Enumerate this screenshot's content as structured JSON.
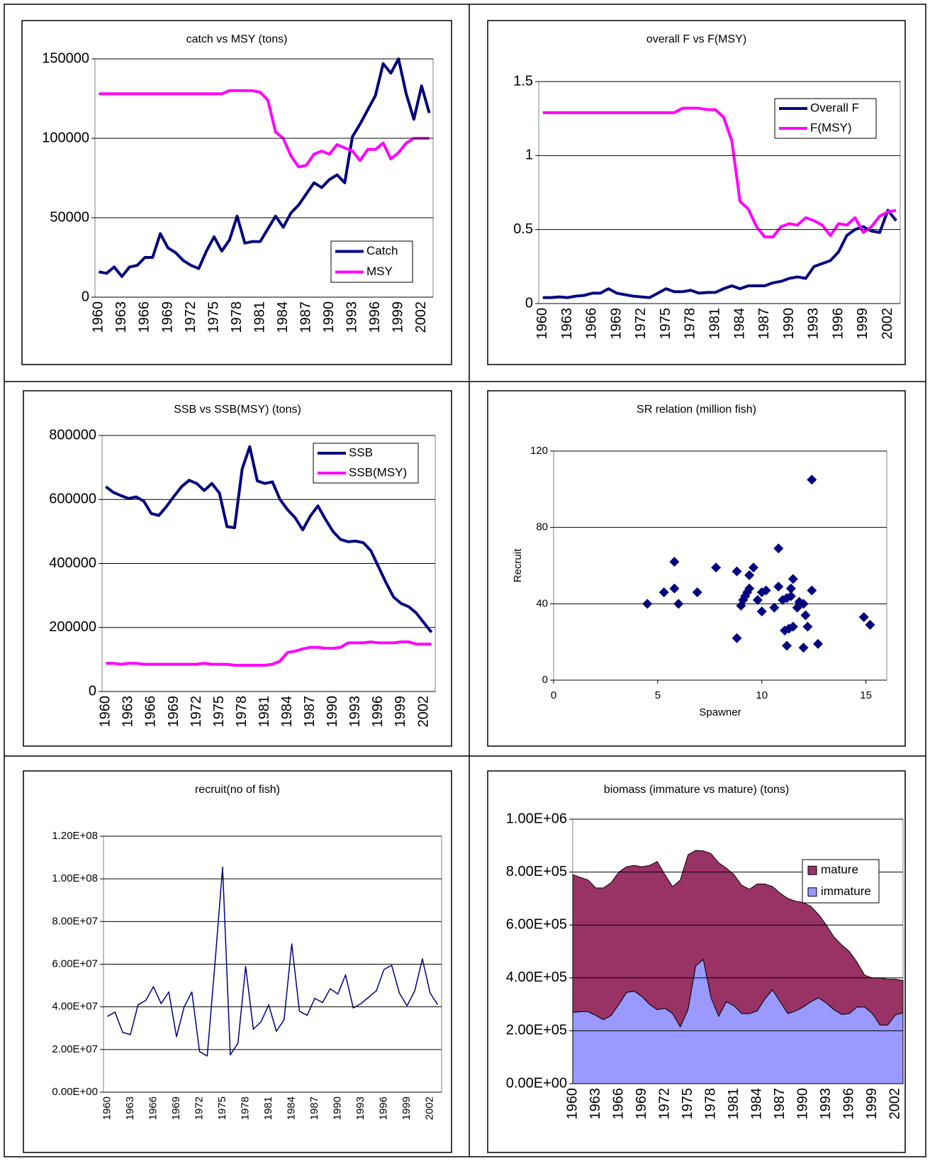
{
  "chart_data": [
    {
      "type": "line",
      "title": "catch vs MSY (tons)",
      "categories": [
        "1960",
        null,
        null,
        "1963",
        null,
        null,
        "1966",
        null,
        null,
        "1969",
        null,
        null,
        "1972",
        null,
        null,
        "1975",
        null,
        null,
        "1978",
        null,
        null,
        "1981",
        null,
        null,
        "1984",
        null,
        null,
        "1987",
        null,
        null,
        "1990",
        null,
        null,
        "1993",
        null,
        null,
        "1996",
        null,
        null,
        "1999",
        null,
        null,
        "2002",
        null
      ],
      "series": [
        {
          "name": "Catch",
          "color": "#000080",
          "values": [
            16000,
            15000,
            19000,
            13000,
            19000,
            20000,
            25000,
            25000,
            40000,
            31000,
            28000,
            23000,
            20000,
            18000,
            29000,
            38000,
            29000,
            36000,
            51000,
            34000,
            35000,
            35000,
            43000,
            51000,
            44000,
            53000,
            58000,
            65000,
            72000,
            69000,
            74000,
            77000,
            72000,
            101000,
            109000,
            118000,
            127000,
            147000,
            141000,
            150000,
            128000,
            112000,
            133000,
            116000
          ]
        },
        {
          "name": "MSY",
          "color": "#ff00ff",
          "values": [
            128000,
            128000,
            128000,
            128000,
            128000,
            128000,
            128000,
            128000,
            128000,
            128000,
            128000,
            128000,
            128000,
            128000,
            128000,
            128000,
            128000,
            130000,
            130000,
            130000,
            130000,
            129000,
            124000,
            104000,
            100000,
            89000,
            82000,
            83000,
            90000,
            92000,
            90000,
            96000,
            94000,
            92000,
            86000,
            93000,
            93000,
            97000,
            87000,
            91000,
            97000,
            100000,
            100000,
            100000
          ]
        }
      ],
      "ylim": [
        0,
        150000
      ],
      "yticks": [
        0,
        50000,
        100000,
        150000
      ],
      "grid": true,
      "legend": "lower right"
    },
    {
      "type": "line",
      "title": "overall F vs F(MSY)",
      "categories": [
        "1960",
        null,
        null,
        "1963",
        null,
        null,
        "1966",
        null,
        null,
        "1969",
        null,
        null,
        "1972",
        null,
        null,
        "1975",
        null,
        null,
        "1978",
        null,
        null,
        "1981",
        null,
        null,
        "1984",
        null,
        null,
        "1987",
        null,
        null,
        "1990",
        null,
        null,
        "1993",
        null,
        null,
        "1996",
        null,
        null,
        "1999",
        null,
        null,
        "2002",
        null
      ],
      "series": [
        {
          "name": "Overall F",
          "color": "#000080",
          "values": [
            0.04,
            0.04,
            0.045,
            0.04,
            0.05,
            0.055,
            0.07,
            0.07,
            0.1,
            0.07,
            0.06,
            0.05,
            0.045,
            0.04,
            0.07,
            0.1,
            0.08,
            0.08,
            0.09,
            0.07,
            0.075,
            0.075,
            0.1,
            0.12,
            0.1,
            0.12,
            0.12,
            0.12,
            0.14,
            0.15,
            0.17,
            0.18,
            0.17,
            0.25,
            0.27,
            0.29,
            0.35,
            0.46,
            0.5,
            0.52,
            0.49,
            0.48,
            0.63,
            0.56
          ]
        },
        {
          "name": "F(MSY)",
          "color": "#ff00ff",
          "values": [
            1.29,
            1.29,
            1.29,
            1.29,
            1.29,
            1.29,
            1.29,
            1.29,
            1.29,
            1.29,
            1.29,
            1.29,
            1.29,
            1.29,
            1.29,
            1.29,
            1.29,
            1.32,
            1.32,
            1.32,
            1.31,
            1.31,
            1.26,
            1.1,
            0.69,
            0.64,
            0.52,
            0.45,
            0.45,
            0.52,
            0.54,
            0.53,
            0.58,
            0.56,
            0.53,
            0.46,
            0.54,
            0.53,
            0.58,
            0.48,
            0.52,
            0.59,
            0.62,
            0.63
          ]
        }
      ],
      "ylim": [
        0,
        1.5
      ],
      "yticks": [
        0,
        0.5,
        1,
        1.5
      ],
      "grid": true,
      "legend": "upper right"
    },
    {
      "type": "line",
      "title": "SSB vs SSB(MSY) (tons)",
      "categories": [
        "1960",
        null,
        null,
        "1963",
        null,
        null,
        "1966",
        null,
        null,
        "1969",
        null,
        null,
        "1972",
        null,
        null,
        "1975",
        null,
        null,
        "1978",
        null,
        null,
        "1981",
        null,
        null,
        "1984",
        null,
        null,
        "1987",
        null,
        null,
        "1990",
        null,
        null,
        "1993",
        null,
        null,
        "1996",
        null,
        null,
        "1999",
        null,
        null,
        "2002",
        null
      ],
      "series": [
        {
          "name": "SSB",
          "color": "#000080",
          "values": [
            640000,
            622000,
            612000,
            603000,
            608000,
            595000,
            556000,
            550000,
            578000,
            610000,
            640000,
            660000,
            650000,
            628000,
            650000,
            620000,
            515000,
            512000,
            695000,
            765000,
            658000,
            650000,
            655000,
            600000,
            568000,
            543000,
            505000,
            548000,
            580000,
            538000,
            500000,
            475000,
            468000,
            470000,
            465000,
            440000,
            390000,
            340000,
            295000,
            275000,
            265000,
            245000,
            215000,
            185000
          ]
        },
        {
          "name": "SSB(MSY)",
          "color": "#ff00ff",
          "values": [
            88000,
            88000,
            85000,
            88000,
            88000,
            85000,
            85000,
            85000,
            85000,
            85000,
            85000,
            85000,
            85000,
            88000,
            85000,
            85000,
            85000,
            82000,
            82000,
            82000,
            82000,
            82000,
            85000,
            95000,
            122000,
            126000,
            133000,
            138000,
            138000,
            135000,
            135000,
            138000,
            152000,
            152000,
            152000,
            155000,
            152000,
            152000,
            152000,
            155000,
            155000,
            148000,
            148000,
            148000
          ]
        }
      ],
      "ylim": [
        0,
        800000
      ],
      "yticks": [
        0,
        200000,
        400000,
        600000,
        800000
      ],
      "grid": true,
      "legend": "upper right"
    },
    {
      "type": "scatter",
      "title": "SR relation (million fish)",
      "xlabel": "Spawner",
      "ylabel": "Recruit",
      "x": [
        4.5,
        5.3,
        5.8,
        5.8,
        6.0,
        6.9,
        7.8,
        8.8,
        8.8,
        9.0,
        9.1,
        9.2,
        9.3,
        9.4,
        9.4,
        9.6,
        9.8,
        10.0,
        10.0,
        10.2,
        10.6,
        10.8,
        10.8,
        11.0,
        11.1,
        11.2,
        11.2,
        11.3,
        11.4,
        11.4,
        11.5,
        11.5,
        11.7,
        11.8,
        12.0,
        12.0,
        12.1,
        12.2,
        12.4,
        12.4,
        12.7,
        14.9,
        15.2
      ],
      "values": [
        40,
        46,
        62,
        48,
        40,
        46,
        59,
        57,
        22,
        39,
        42,
        44,
        46,
        55,
        48,
        59,
        42,
        36,
        46,
        47,
        38,
        69,
        49,
        42,
        26,
        18,
        43,
        27,
        48,
        44,
        28,
        53,
        38,
        41,
        17,
        40,
        34,
        28,
        105,
        47,
        19,
        33,
        29
      ],
      "color": "#000080",
      "xlim": [
        0,
        16
      ],
      "xticks": [
        0,
        5,
        10,
        15
      ],
      "ylim": [
        0,
        120
      ],
      "yticks": [
        0,
        40,
        80,
        120
      ],
      "grid": true
    },
    {
      "type": "line",
      "title": "recruit(no of fish)",
      "categories": [
        "1960",
        null,
        null,
        "1963",
        null,
        null,
        "1966",
        null,
        null,
        "1969",
        null,
        null,
        "1972",
        null,
        null,
        "1975",
        null,
        null,
        "1978",
        null,
        null,
        "1981",
        null,
        null,
        "1984",
        null,
        null,
        "1987",
        null,
        null,
        "1990",
        null,
        null,
        "1993",
        null,
        null,
        "1996",
        null,
        null,
        "1999",
        null,
        null,
        "2002",
        null
      ],
      "values": [
        35500000,
        37500000,
        28000000,
        27000000,
        41000000,
        43000000,
        49500000,
        41500000,
        47000000,
        26000000,
        40000000,
        47000000,
        19000000,
        17000000,
        60000000,
        105500000,
        17500000,
        23000000,
        59000000,
        29500000,
        33000000,
        41000000,
        28500000,
        34000000,
        69500000,
        38000000,
        36000000,
        44000000,
        42000000,
        48500000,
        46000000,
        55000000,
        39500000,
        41500000,
        44500000,
        47500000,
        57500000,
        59500000,
        46500000,
        40500000,
        47500000,
        62500000,
        46500000,
        41000000
      ],
      "color": "#000080",
      "ylim": [
        0,
        120000000
      ],
      "yticks": [
        {
          "value": 0,
          "label": "0.00E+00"
        },
        {
          "value": 20000000,
          "label": "2.00E+07"
        },
        {
          "value": 40000000,
          "label": "4.00E+07"
        },
        {
          "value": 60000000,
          "label": "6.00E+07"
        },
        {
          "value": 80000000,
          "label": "8.00E+07"
        },
        {
          "value": 100000000,
          "label": "1.00E+08"
        },
        {
          "value": 120000000,
          "label": "1.20E+08"
        }
      ],
      "grid": true
    },
    {
      "type": "area",
      "title": "biomass (immature vs mature) (tons)",
      "stacked": true,
      "categories": [
        "1960",
        null,
        null,
        "1963",
        null,
        null,
        "1966",
        null,
        null,
        "1969",
        null,
        null,
        "1972",
        null,
        null,
        "1975",
        null,
        null,
        "1978",
        null,
        null,
        "1981",
        null,
        null,
        "1984",
        null,
        null,
        "1987",
        null,
        null,
        "1990",
        null,
        null,
        "1993",
        null,
        null,
        "1996",
        null,
        null,
        "1999",
        null,
        null,
        "2002",
        null
      ],
      "series": [
        {
          "name": "immature",
          "color": "#9999ff",
          "values": [
            270000,
            272000,
            272000,
            258000,
            242000,
            258000,
            300000,
            345000,
            350000,
            330000,
            300000,
            280000,
            285000,
            265000,
            215000,
            280000,
            445000,
            470000,
            325000,
            255000,
            310000,
            295000,
            265000,
            265000,
            275000,
            320000,
            355000,
            310000,
            265000,
            275000,
            290000,
            310000,
            325000,
            305000,
            280000,
            262000,
            265000,
            290000,
            290000,
            265000,
            222000,
            222000,
            260000,
            268000
          ]
        },
        {
          "name": "mature",
          "color": "#993366",
          "values": [
            520000,
            508000,
            498000,
            482000,
            498000,
            502000,
            500000,
            475000,
            475000,
            490000,
            525000,
            560000,
            505000,
            480000,
            555000,
            585000,
            437000,
            410000,
            545000,
            580000,
            505000,
            495000,
            485000,
            470000,
            480000,
            435000,
            390000,
            410000,
            435000,
            415000,
            395000,
            360000,
            315000,
            295000,
            275000,
            263000,
            235000,
            170000,
            120000,
            135000,
            178000,
            173000,
            135000,
            122000
          ]
        }
      ],
      "ylim": [
        0,
        1000000
      ],
      "yticks": [
        {
          "value": 0,
          "label": "0.00E+00"
        },
        {
          "value": 200000,
          "label": "2.00E+05"
        },
        {
          "value": 400000,
          "label": "4.00E+05"
        },
        {
          "value": 600000,
          "label": "6.00E+05"
        },
        {
          "value": 800000,
          "label": "8.00E+05"
        },
        {
          "value": 1000000,
          "label": "1.00E+06"
        }
      ],
      "grid": true,
      "legend": "upper right"
    }
  ]
}
